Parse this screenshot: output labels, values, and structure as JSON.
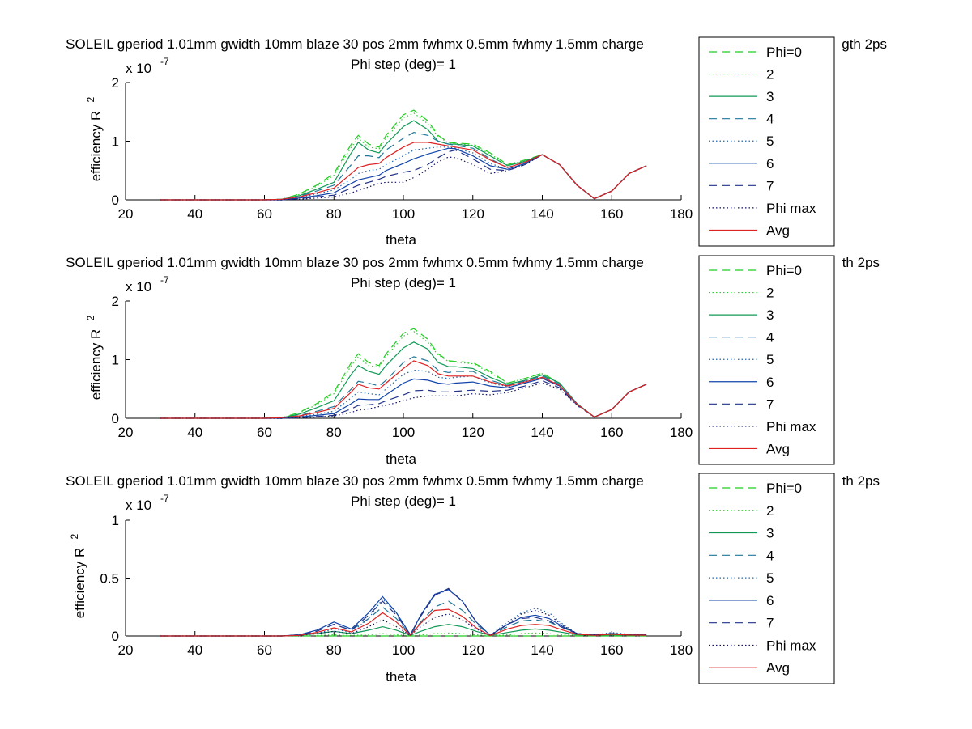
{
  "figure": {
    "background": "#ffffff"
  },
  "series_styles": [
    {
      "name": "Phi=0",
      "color": "#22cc22",
      "dash": "10,6"
    },
    {
      "name": "2",
      "color": "#33cc33",
      "dash": "1.5,3"
    },
    {
      "name": "3",
      "color": "#119955",
      "dash": ""
    },
    {
      "name": "4",
      "color": "#227799",
      "dash": "10,6"
    },
    {
      "name": "5",
      "color": "#2266aa",
      "dash": "1.5,3"
    },
    {
      "name": "6",
      "color": "#1144aa",
      "dash": ""
    },
    {
      "name": "7",
      "color": "#223388",
      "dash": "10,6"
    },
    {
      "name": "Phi max",
      "color": "#111166",
      "dash": "1.5,3"
    },
    {
      "name": "Avg",
      "color": "#dd2222",
      "dash": ""
    }
  ],
  "chart_data": [
    {
      "type": "line",
      "title": "SOLEIL gperiod 1.01mm gwidth 10mm blaze 30 pos 2mm fwhmx 0.5mm fwhmy 1.5mm charge",
      "title_tail": "gth 2ps",
      "subtitle": "Phi step (deg)= 1",
      "xlabel": "theta",
      "ylabel": "efficiency R",
      "ylabel_sup": "2",
      "y_multiplier": "x 10",
      "y_multiplier_exp": "-7",
      "xlim": [
        20,
        180
      ],
      "ylim": [
        0,
        2
      ],
      "xticks": [
        "20",
        "40",
        "60",
        "80",
        "100",
        "120",
        "140",
        "160",
        "180"
      ],
      "yticks": [
        "0",
        "1",
        "2"
      ],
      "legend_position": "right",
      "legend": [
        "Phi=0",
        "2",
        "3",
        "4",
        "5",
        "6",
        "7",
        "Phi max",
        "Avg"
      ],
      "x": [
        30,
        60,
        65,
        70,
        75,
        80,
        85,
        87,
        90,
        93,
        95,
        100,
        103,
        107,
        110,
        113,
        115,
        120,
        125,
        130,
        135,
        140,
        145,
        150,
        155,
        160,
        165,
        170
      ],
      "series": [
        {
          "name": "Phi=0",
          "values": [
            0,
            0,
            0.01,
            0.1,
            0.25,
            0.45,
            0.95,
            1.1,
            0.95,
            0.9,
            1.1,
            1.45,
            1.53,
            1.35,
            1.1,
            0.98,
            0.97,
            0.95,
            0.8,
            0.6,
            0.68,
            0.77,
            0.6,
            0.25,
            0.02,
            0.15,
            0.45,
            0.58
          ]
        },
        {
          "name": "2",
          "values": [
            0,
            0,
            0.01,
            0.09,
            0.23,
            0.42,
            0.9,
            1.05,
            0.9,
            0.87,
            1.05,
            1.4,
            1.48,
            1.3,
            1.08,
            0.97,
            0.96,
            0.93,
            0.78,
            0.59,
            0.67,
            0.77,
            0.6,
            0.25,
            0.02,
            0.15,
            0.45,
            0.58
          ]
        },
        {
          "name": "3",
          "values": [
            0,
            0,
            0.01,
            0.07,
            0.18,
            0.3,
            0.8,
            0.98,
            0.85,
            0.8,
            0.95,
            1.25,
            1.35,
            1.2,
            1.0,
            0.95,
            0.95,
            0.92,
            0.75,
            0.58,
            0.66,
            0.77,
            0.6,
            0.25,
            0.02,
            0.15,
            0.45,
            0.58
          ]
        },
        {
          "name": "4",
          "values": [
            0,
            0,
            0.01,
            0.06,
            0.15,
            0.25,
            0.6,
            0.75,
            0.75,
            0.72,
            0.85,
            1.05,
            1.15,
            1.1,
            1.0,
            0.95,
            0.93,
            0.88,
            0.7,
            0.55,
            0.64,
            0.77,
            0.6,
            0.25,
            0.02,
            0.15,
            0.45,
            0.58
          ]
        },
        {
          "name": "5",
          "values": [
            0,
            0,
            0.0,
            0.04,
            0.1,
            0.17,
            0.35,
            0.45,
            0.5,
            0.52,
            0.6,
            0.75,
            0.85,
            0.88,
            0.9,
            0.9,
            0.88,
            0.8,
            0.62,
            0.52,
            0.62,
            0.77,
            0.6,
            0.25,
            0.02,
            0.15,
            0.45,
            0.58
          ]
        },
        {
          "name": "6",
          "values": [
            0,
            0,
            0.0,
            0.03,
            0.07,
            0.12,
            0.28,
            0.34,
            0.38,
            0.42,
            0.5,
            0.62,
            0.7,
            0.78,
            0.83,
            0.88,
            0.87,
            0.75,
            0.58,
            0.52,
            0.62,
            0.77,
            0.6,
            0.25,
            0.02,
            0.15,
            0.45,
            0.58
          ]
        },
        {
          "name": "7",
          "values": [
            0,
            0,
            0.0,
            0.02,
            0.05,
            0.08,
            0.2,
            0.25,
            0.3,
            0.35,
            0.4,
            0.47,
            0.5,
            0.6,
            0.72,
            0.82,
            0.85,
            0.7,
            0.52,
            0.5,
            0.6,
            0.77,
            0.6,
            0.25,
            0.02,
            0.15,
            0.45,
            0.58
          ]
        },
        {
          "name": "Phi max",
          "values": [
            0,
            0,
            0.0,
            0.01,
            0.03,
            0.05,
            0.12,
            0.16,
            0.22,
            0.28,
            0.3,
            0.3,
            0.38,
            0.52,
            0.65,
            0.73,
            0.72,
            0.6,
            0.45,
            0.5,
            0.6,
            0.77,
            0.6,
            0.25,
            0.02,
            0.15,
            0.45,
            0.58
          ]
        },
        {
          "name": "Avg",
          "values": [
            0,
            0,
            0.01,
            0.05,
            0.12,
            0.2,
            0.45,
            0.55,
            0.6,
            0.62,
            0.72,
            0.9,
            0.98,
            0.98,
            0.95,
            0.92,
            0.9,
            0.85,
            0.68,
            0.55,
            0.64,
            0.77,
            0.6,
            0.25,
            0.02,
            0.15,
            0.45,
            0.58
          ]
        }
      ]
    },
    {
      "type": "line",
      "title": "SOLEIL gperiod 1.01mm gwidth 10mm blaze 30 pos 2mm fwhmx 0.5mm fwhmy 1.5mm charge",
      "title_tail": "th 2ps",
      "subtitle": "Phi step (deg)= 1",
      "xlabel": "theta",
      "ylabel": "efficiency R",
      "ylabel_sup": "2",
      "y_multiplier": "x 10",
      "y_multiplier_exp": "-7",
      "xlim": [
        20,
        180
      ],
      "ylim": [
        0,
        2
      ],
      "xticks": [
        "20",
        "40",
        "60",
        "80",
        "100",
        "120",
        "140",
        "160",
        "180"
      ],
      "yticks": [
        "0",
        "1",
        "2"
      ],
      "legend_position": "right",
      "legend": [
        "Phi=0",
        "2",
        "3",
        "4",
        "5",
        "6",
        "7",
        "Phi max",
        "Avg"
      ],
      "x": [
        30,
        60,
        65,
        70,
        75,
        80,
        85,
        87,
        90,
        93,
        95,
        100,
        103,
        107,
        110,
        113,
        115,
        120,
        125,
        130,
        135,
        140,
        145,
        150,
        155,
        160,
        165,
        170
      ],
      "series": [
        {
          "name": "Phi=0",
          "values": [
            0,
            0,
            0.01,
            0.1,
            0.25,
            0.45,
            0.95,
            1.1,
            0.95,
            0.9,
            1.1,
            1.45,
            1.53,
            1.35,
            1.1,
            0.98,
            0.97,
            0.95,
            0.8,
            0.6,
            0.68,
            0.77,
            0.6,
            0.25,
            0.02,
            0.15,
            0.45,
            0.58
          ]
        },
        {
          "name": "2",
          "values": [
            0,
            0,
            0.01,
            0.09,
            0.23,
            0.42,
            0.9,
            1.05,
            0.9,
            0.87,
            1.05,
            1.4,
            1.48,
            1.3,
            1.08,
            0.97,
            0.96,
            0.93,
            0.78,
            0.6,
            0.68,
            0.76,
            0.6,
            0.25,
            0.02,
            0.15,
            0.45,
            0.58
          ]
        },
        {
          "name": "3",
          "values": [
            0,
            0,
            0.01,
            0.07,
            0.18,
            0.3,
            0.75,
            0.9,
            0.8,
            0.75,
            0.9,
            1.2,
            1.3,
            1.18,
            0.95,
            0.88,
            0.88,
            0.85,
            0.7,
            0.58,
            0.65,
            0.74,
            0.6,
            0.25,
            0.02,
            0.15,
            0.45,
            0.58
          ]
        },
        {
          "name": "4",
          "values": [
            0,
            0,
            0.0,
            0.05,
            0.12,
            0.2,
            0.5,
            0.63,
            0.6,
            0.55,
            0.65,
            0.95,
            1.05,
            0.98,
            0.82,
            0.78,
            0.8,
            0.8,
            0.65,
            0.56,
            0.64,
            0.72,
            0.58,
            0.25,
            0.02,
            0.15,
            0.45,
            0.58
          ]
        },
        {
          "name": "5",
          "values": [
            0,
            0,
            0.0,
            0.03,
            0.07,
            0.12,
            0.35,
            0.45,
            0.42,
            0.4,
            0.5,
            0.75,
            0.82,
            0.8,
            0.7,
            0.68,
            0.7,
            0.72,
            0.6,
            0.54,
            0.63,
            0.7,
            0.56,
            0.24,
            0.02,
            0.15,
            0.45,
            0.58
          ]
        },
        {
          "name": "6",
          "values": [
            0,
            0,
            0.0,
            0.02,
            0.05,
            0.08,
            0.25,
            0.33,
            0.32,
            0.32,
            0.4,
            0.6,
            0.67,
            0.65,
            0.6,
            0.58,
            0.6,
            0.62,
            0.55,
            0.52,
            0.6,
            0.68,
            0.55,
            0.24,
            0.02,
            0.15,
            0.45,
            0.58
          ]
        },
        {
          "name": "7",
          "values": [
            0,
            0,
            0.0,
            0.01,
            0.03,
            0.05,
            0.16,
            0.22,
            0.23,
            0.25,
            0.3,
            0.4,
            0.47,
            0.48,
            0.45,
            0.45,
            0.46,
            0.48,
            0.46,
            0.48,
            0.55,
            0.64,
            0.52,
            0.23,
            0.02,
            0.15,
            0.45,
            0.58
          ]
        },
        {
          "name": "Phi max",
          "values": [
            0,
            0,
            0.0,
            0.01,
            0.02,
            0.04,
            0.1,
            0.14,
            0.16,
            0.2,
            0.22,
            0.3,
            0.35,
            0.38,
            0.38,
            0.38,
            0.38,
            0.42,
            0.4,
            0.44,
            0.52,
            0.6,
            0.5,
            0.22,
            0.02,
            0.15,
            0.45,
            0.58
          ]
        },
        {
          "name": "Avg",
          "values": [
            0,
            0,
            0.01,
            0.04,
            0.1,
            0.17,
            0.45,
            0.58,
            0.52,
            0.5,
            0.6,
            0.85,
            0.98,
            0.9,
            0.76,
            0.72,
            0.72,
            0.72,
            0.62,
            0.55,
            0.62,
            0.7,
            0.56,
            0.24,
            0.02,
            0.15,
            0.45,
            0.58
          ]
        }
      ]
    },
    {
      "type": "line",
      "title": "SOLEIL gperiod 1.01mm gwidth 10mm blaze 30 pos 2mm fwhmx 0.5mm fwhmy 1.5mm charge",
      "title_tail": "th 2ps",
      "subtitle": "Phi step (deg)= 1",
      "xlabel": "theta",
      "ylabel": "efficiency R",
      "ylabel_sup": "2",
      "y_multiplier": "x 10",
      "y_multiplier_exp": "-7",
      "xlim": [
        20,
        180
      ],
      "ylim": [
        0,
        1
      ],
      "xticks": [
        "20",
        "40",
        "60",
        "80",
        "100",
        "120",
        "140",
        "160",
        "180"
      ],
      "yticks": [
        "0",
        "0.5",
        "1"
      ],
      "legend_position": "right",
      "legend": [
        "Phi=0",
        "2",
        "3",
        "4",
        "5",
        "6",
        "7",
        "Phi max",
        "Avg"
      ],
      "x": [
        30,
        60,
        65,
        70,
        75,
        80,
        85,
        90,
        94,
        98,
        102,
        105,
        109,
        113,
        117,
        121,
        125,
        130,
        134,
        138,
        142,
        146,
        150,
        155,
        160,
        165,
        170
      ],
      "series": [
        {
          "name": "Phi=0",
          "values": [
            0,
            0,
            0,
            0,
            0,
            0,
            0,
            0,
            0,
            0,
            0,
            0,
            0,
            0,
            0,
            0,
            0,
            0,
            0,
            0,
            0,
            0,
            0,
            0,
            0,
            0,
            0
          ]
        },
        {
          "name": "2",
          "values": [
            0,
            0,
            0,
            0,
            0.005,
            0.01,
            0.005,
            0.01,
            0.02,
            0.01,
            0.002,
            0.01,
            0.02,
            0.025,
            0.02,
            0.01,
            0.002,
            0.01,
            0.02,
            0.025,
            0.02,
            0.01,
            0.005,
            0.005,
            0.005,
            0.003,
            0.003
          ]
        },
        {
          "name": "3",
          "values": [
            0,
            0,
            0,
            0.005,
            0.02,
            0.04,
            0.02,
            0.05,
            0.08,
            0.05,
            0.005,
            0.04,
            0.08,
            0.1,
            0.08,
            0.04,
            0.005,
            0.03,
            0.05,
            0.06,
            0.05,
            0.03,
            0.01,
            0.005,
            0.01,
            0.005,
            0.005
          ]
        },
        {
          "name": "4",
          "values": [
            0,
            0,
            0,
            0.01,
            0.04,
            0.1,
            0.05,
            0.15,
            0.25,
            0.15,
            0.01,
            0.12,
            0.25,
            0.3,
            0.22,
            0.1,
            0.005,
            0.08,
            0.13,
            0.14,
            0.12,
            0.07,
            0.02,
            0.01,
            0.02,
            0.01,
            0.01
          ]
        },
        {
          "name": "5",
          "values": [
            0,
            0,
            0,
            0.005,
            0.02,
            0.06,
            0.03,
            0.15,
            0.32,
            0.2,
            0.01,
            0.18,
            0.35,
            0.4,
            0.3,
            0.12,
            0.005,
            0.12,
            0.2,
            0.24,
            0.2,
            0.1,
            0.02,
            0.01,
            0.03,
            0.015,
            0.01
          ]
        },
        {
          "name": "6",
          "values": [
            0,
            0,
            0,
            0.01,
            0.05,
            0.12,
            0.06,
            0.2,
            0.34,
            0.2,
            0.01,
            0.18,
            0.36,
            0.4,
            0.3,
            0.12,
            0.005,
            0.1,
            0.16,
            0.18,
            0.15,
            0.08,
            0.02,
            0.01,
            0.02,
            0.01,
            0.01
          ]
        },
        {
          "name": "7",
          "values": [
            0,
            0,
            0,
            0.01,
            0.04,
            0.1,
            0.05,
            0.18,
            0.3,
            0.18,
            0.01,
            0.17,
            0.35,
            0.41,
            0.3,
            0.12,
            0.005,
            0.1,
            0.15,
            0.16,
            0.13,
            0.07,
            0.02,
            0.01,
            0.02,
            0.01,
            0.01
          ]
        },
        {
          "name": "Phi max",
          "values": [
            0,
            0,
            0,
            0.005,
            0.02,
            0.04,
            0.02,
            0.08,
            0.14,
            0.08,
            0.005,
            0.08,
            0.16,
            0.19,
            0.14,
            0.06,
            0.003,
            0.1,
            0.19,
            0.22,
            0.18,
            0.09,
            0.02,
            0.01,
            0.02,
            0.01,
            0.01
          ]
        },
        {
          "name": "Avg",
          "values": [
            0,
            0,
            0,
            0.005,
            0.03,
            0.07,
            0.035,
            0.11,
            0.2,
            0.12,
            0.005,
            0.11,
            0.22,
            0.23,
            0.17,
            0.07,
            0.003,
            0.06,
            0.09,
            0.1,
            0.09,
            0.05,
            0.015,
            0.005,
            0.015,
            0.008,
            0.006
          ]
        }
      ]
    }
  ]
}
